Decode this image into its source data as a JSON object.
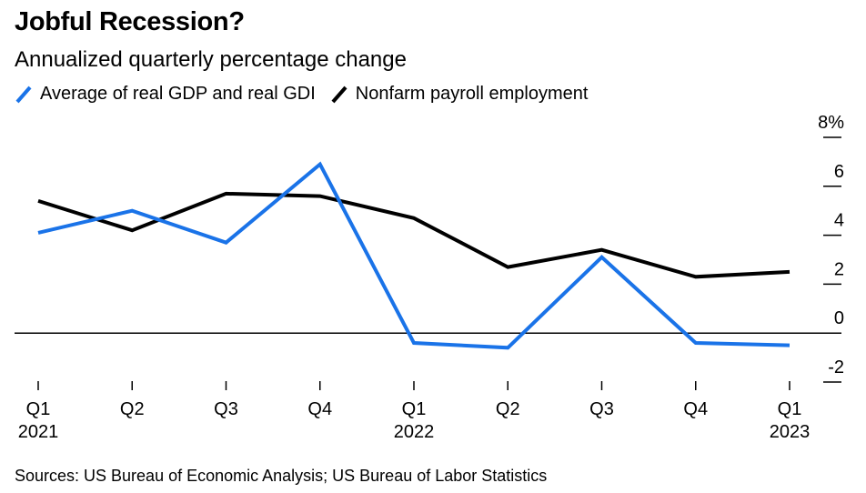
{
  "title": "Jobful Recession?",
  "subtitle": "Annualized quarterly percentage change",
  "source": "Sources: US Bureau of Economic Analysis; US Bureau of Labor Statistics",
  "legend": [
    {
      "label": "Average of real GDP and real GDI",
      "color": "#1a73e8"
    },
    {
      "label": "Nonfarm payroll employment",
      "color": "#000000"
    }
  ],
  "chart_data": {
    "type": "line",
    "title": "Jobful Recession?",
    "subtitle": "Annualized quarterly percentage change",
    "x": [
      "Q1 2021",
      "Q2 2021",
      "Q3 2021",
      "Q4 2021",
      "Q1 2022",
      "Q2 2022",
      "Q3 2022",
      "Q4 2022",
      "Q1 2023"
    ],
    "x_tick_labels": [
      {
        "quarter": "Q1",
        "year": "2021"
      },
      {
        "quarter": "Q2",
        "year": ""
      },
      {
        "quarter": "Q3",
        "year": ""
      },
      {
        "quarter": "Q4",
        "year": ""
      },
      {
        "quarter": "Q1",
        "year": "2022"
      },
      {
        "quarter": "Q2",
        "year": ""
      },
      {
        "quarter": "Q3",
        "year": ""
      },
      {
        "quarter": "Q4",
        "year": ""
      },
      {
        "quarter": "Q1",
        "year": "2023"
      }
    ],
    "series": [
      {
        "name": "Average of real GDP and real GDI",
        "color": "#1a73e8",
        "values": [
          4.1,
          5.0,
          3.7,
          6.9,
          -0.4,
          -0.6,
          3.1,
          -0.4,
          -0.5
        ]
      },
      {
        "name": "Nonfarm payroll employment",
        "color": "#000000",
        "values": [
          5.4,
          4.2,
          5.7,
          5.6,
          4.7,
          2.7,
          3.4,
          2.3,
          2.5
        ]
      }
    ],
    "ylim": [
      -2,
      8
    ],
    "y_ticks": [
      -2,
      0,
      2,
      4,
      6,
      8
    ],
    "y_tick_labels": [
      "-2",
      "0",
      "2",
      "4",
      "6",
      "8%"
    ],
    "y_axis_side": "right",
    "zero_line": true,
    "legend_position": "top-left"
  }
}
